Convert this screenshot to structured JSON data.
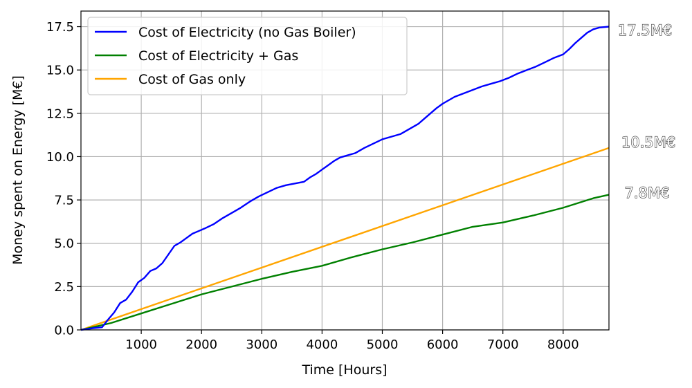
{
  "chart_data": {
    "type": "line",
    "title": "",
    "xlabel": "Time [Hours]",
    "ylabel": "Money spent on Energy [M€]",
    "xlim": [
      0,
      8760
    ],
    "ylim": [
      0,
      18.4
    ],
    "xticks": [
      1000,
      2000,
      3000,
      4000,
      5000,
      6000,
      7000,
      8000
    ],
    "yticks": [
      0.0,
      2.5,
      5.0,
      7.5,
      10.0,
      12.5,
      15.0,
      17.5
    ],
    "xtick_labels": [
      "1000",
      "2000",
      "3000",
      "4000",
      "5000",
      "6000",
      "7000",
      "8000"
    ],
    "ytick_labels": [
      "0.0",
      "2.5",
      "5.0",
      "7.5",
      "10.0",
      "12.5",
      "15.0",
      "17.5"
    ],
    "grid": true,
    "legend_position": "top-left",
    "series": [
      {
        "name": "Cost of Electricity (no Gas Boiler)",
        "color": "#0000ff",
        "x": [
          0,
          200,
          350,
          450,
          550,
          650,
          750,
          850,
          950,
          1050,
          1150,
          1250,
          1350,
          1450,
          1550,
          1650,
          1750,
          1850,
          1950,
          2050,
          2200,
          2350,
          2500,
          2650,
          2800,
          2950,
          3100,
          3250,
          3400,
          3550,
          3700,
          3800,
          3900,
          4000,
          4100,
          4200,
          4300,
          4400,
          4550,
          4700,
          4850,
          5000,
          5150,
          5300,
          5450,
          5600,
          5700,
          5800,
          5900,
          6000,
          6100,
          6200,
          6350,
          6500,
          6650,
          6800,
          6950,
          7100,
          7250,
          7400,
          7550,
          7700,
          7850,
          8000,
          8100,
          8200,
          8300,
          8400,
          8500,
          8600,
          8760
        ],
        "y": [
          0,
          0.1,
          0.15,
          0.6,
          1.0,
          1.55,
          1.75,
          2.2,
          2.75,
          3.0,
          3.4,
          3.55,
          3.85,
          4.35,
          4.85,
          5.05,
          5.3,
          5.55,
          5.7,
          5.85,
          6.1,
          6.45,
          6.75,
          7.05,
          7.4,
          7.7,
          7.95,
          8.2,
          8.35,
          8.45,
          8.55,
          8.8,
          9.0,
          9.25,
          9.5,
          9.75,
          9.95,
          10.05,
          10.2,
          10.5,
          10.75,
          11.0,
          11.15,
          11.3,
          11.6,
          11.9,
          12.2,
          12.5,
          12.8,
          13.05,
          13.25,
          13.45,
          13.65,
          13.85,
          14.05,
          14.2,
          14.35,
          14.55,
          14.8,
          15.0,
          15.2,
          15.45,
          15.7,
          15.9,
          16.2,
          16.55,
          16.85,
          17.15,
          17.35,
          17.45,
          17.5
        ]
      },
      {
        "name": "Cost of Electricity + Gas",
        "color": "#008000",
        "x": [
          0,
          500,
          1000,
          1500,
          2000,
          2500,
          3000,
          3500,
          4000,
          4500,
          5000,
          5500,
          6000,
          6500,
          7000,
          7500,
          8000,
          8500,
          8760
        ],
        "y": [
          0,
          0.4,
          0.95,
          1.5,
          2.05,
          2.5,
          2.95,
          3.35,
          3.7,
          4.2,
          4.65,
          5.05,
          5.5,
          5.95,
          6.2,
          6.6,
          7.05,
          7.6,
          7.8
        ]
      },
      {
        "name": "Cost of Gas only",
        "color": "#ffa500",
        "x": [
          0,
          8760
        ],
        "y": [
          0,
          10.5
        ]
      }
    ],
    "annotations": [
      {
        "text": "17.5M€",
        "x": 8760,
        "y": 17.5,
        "color": "#0000ff"
      },
      {
        "text": "10.5M€",
        "x": 8760,
        "y": 10.5,
        "color": "#ffa500"
      },
      {
        "text": "7.8M€",
        "x": 8760,
        "y": 7.8,
        "color": "#008000"
      }
    ]
  }
}
